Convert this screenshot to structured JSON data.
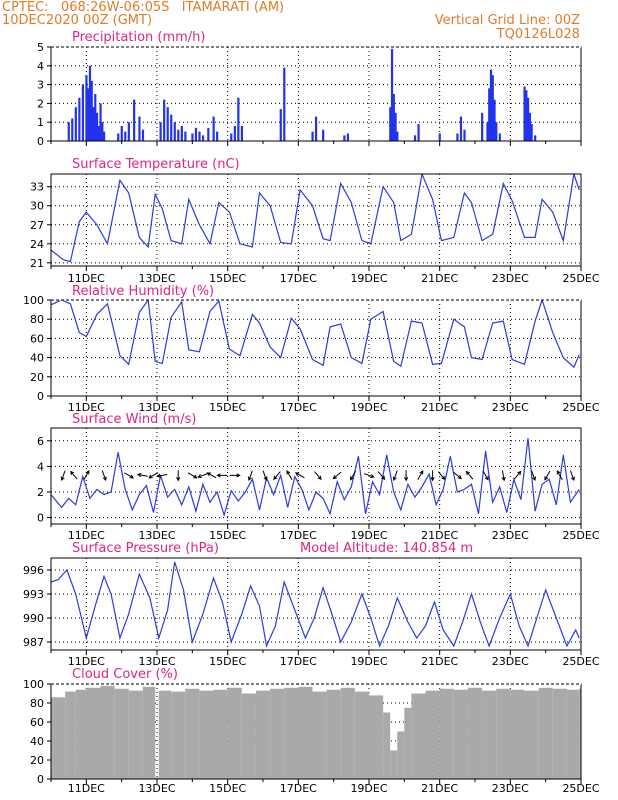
{
  "header": {
    "line1": "CPTEC:   068:26W-06:05S   ITAMARATI (AM)",
    "line2": "10DEC2020 00Z (GMT)",
    "grid_note": "Vertical Grid Line: 00Z",
    "code": "TQ0126L028"
  },
  "x_ticks": [
    "11DEC",
    "13DEC",
    "15DEC",
    "17DEC",
    "19DEC",
    "21DEC",
    "23DEC",
    "25DEC"
  ],
  "colors": {
    "line": "#2b3be0",
    "bar": "#2233ee",
    "cloud": "#a9a9a9",
    "title": "#e0238a",
    "header": "#e07b2a"
  },
  "chart_data": [
    {
      "type": "bar",
      "title": "Precipitation (mm/h)",
      "ylim": [
        0,
        5
      ],
      "yticks": [
        0,
        1,
        2,
        3,
        4,
        5
      ],
      "x": [
        0.5,
        0.6,
        0.7,
        0.8,
        0.9,
        1.0,
        1.05,
        1.1,
        1.15,
        1.2,
        1.25,
        1.3,
        1.35,
        1.4,
        1.45,
        1.5,
        1.9,
        2.0,
        2.1,
        2.2,
        2.35,
        2.5,
        2.6,
        3.1,
        3.2,
        3.3,
        3.4,
        3.5,
        3.6,
        3.7,
        3.8,
        4.0,
        4.1,
        4.2,
        4.3,
        4.45,
        4.6,
        4.7,
        5.1,
        5.2,
        5.3,
        5.4,
        6.5,
        6.6,
        7.4,
        7.5,
        7.7,
        8.3,
        8.4,
        9.6,
        9.65,
        9.7,
        9.75,
        9.8,
        10.3,
        10.4,
        11.0,
        11.5,
        11.6,
        11.7,
        12.2,
        12.35,
        12.4,
        12.45,
        12.5,
        12.55,
        12.6,
        12.7,
        13.4,
        13.45,
        13.5,
        13.55,
        13.6,
        13.7
      ],
      "values": [
        1.0,
        1.2,
        1.8,
        2.3,
        3.0,
        3.5,
        2.8,
        4.0,
        3.2,
        1.8,
        2.5,
        1.5,
        0.8,
        2.0,
        1.0,
        0.5,
        0.4,
        0.8,
        0.5,
        1.0,
        2.2,
        1.3,
        0.6,
        1.0,
        2.2,
        1.8,
        1.4,
        1.0,
        0.6,
        0.8,
        0.5,
        0.4,
        0.7,
        0.5,
        0.3,
        0.7,
        1.3,
        0.5,
        0.4,
        0.8,
        2.3,
        0.8,
        1.7,
        3.9,
        0.5,
        1.3,
        0.6,
        0.3,
        0.4,
        1.8,
        4.9,
        2.5,
        1.5,
        0.5,
        0.3,
        0.9,
        0.4,
        0.4,
        1.3,
        0.6,
        1.5,
        1.0,
        2.8,
        3.8,
        3.5,
        2.2,
        1.0,
        0.4,
        2.9,
        2.7,
        2.3,
        1.5,
        0.9,
        0.3
      ]
    },
    {
      "type": "line",
      "title": "Surface Temperature (nC)",
      "ylim": [
        20.5,
        35
      ],
      "yticks": [
        21,
        24,
        27,
        30,
        33
      ],
      "x": [
        0,
        0.35,
        0.55,
        0.8,
        1.0,
        1.3,
        1.6,
        1.95,
        2.2,
        2.5,
        2.75,
        2.95,
        3.15,
        3.4,
        3.7,
        3.9,
        4.2,
        4.5,
        4.75,
        5.05,
        5.35,
        5.7,
        5.9,
        6.2,
        6.5,
        6.8,
        7.05,
        7.4,
        7.7,
        7.9,
        8.2,
        8.5,
        8.8,
        9.05,
        9.4,
        9.7,
        9.9,
        10.2,
        10.5,
        10.8,
        11.05,
        11.4,
        11.7,
        11.9,
        12.2,
        12.5,
        12.8,
        13.05,
        13.4,
        13.7,
        13.9,
        14.2,
        14.5,
        14.8,
        14.95
      ],
      "values": [
        23.0,
        21.5,
        21.2,
        27.5,
        29.0,
        27.0,
        24.0,
        34.0,
        32.0,
        25.0,
        23.5,
        31.8,
        29.5,
        24.5,
        24.0,
        31.0,
        27.0,
        24.0,
        30.5,
        29.0,
        24.0,
        23.5,
        32.0,
        30.0,
        24.2,
        24.0,
        32.5,
        30.0,
        24.8,
        24.5,
        33.5,
        30.5,
        24.5,
        24.0,
        33.0,
        30.5,
        24.5,
        25.5,
        35.0,
        31.0,
        24.5,
        25.0,
        32.0,
        30.5,
        24.5,
        25.5,
        33.5,
        30.8,
        25.0,
        25.0,
        31.0,
        29.0,
        24.5,
        35.0,
        32.5
      ]
    },
    {
      "type": "line",
      "title": "Relative Humidity (%)",
      "ylim": [
        0,
        100
      ],
      "yticks": [
        0,
        20,
        40,
        60,
        80,
        100
      ],
      "x": [
        0,
        0.3,
        0.55,
        0.8,
        1.0,
        1.3,
        1.6,
        1.95,
        2.2,
        2.5,
        2.75,
        2.95,
        3.15,
        3.4,
        3.7,
        3.9,
        4.2,
        4.5,
        4.75,
        5.05,
        5.35,
        5.7,
        5.9,
        6.2,
        6.5,
        6.8,
        7.05,
        7.4,
        7.7,
        7.9,
        8.2,
        8.5,
        8.8,
        9.05,
        9.4,
        9.7,
        9.9,
        10.2,
        10.5,
        10.8,
        11.05,
        11.4,
        11.7,
        11.9,
        12.2,
        12.5,
        12.8,
        13.05,
        13.4,
        13.7,
        13.9,
        14.2,
        14.5,
        14.8,
        14.95
      ],
      "values": [
        95.0,
        100.0,
        96.0,
        66.0,
        62.0,
        85.0,
        96.0,
        42.0,
        33.0,
        87.0,
        100.0,
        36.0,
        34.0,
        82.0,
        98.0,
        48.0,
        46.0,
        88.0,
        99.0,
        49.0,
        42.0,
        85.0,
        76.0,
        51.0,
        40.0,
        81.0,
        70.0,
        38.0,
        32.0,
        72.0,
        75.0,
        40.0,
        34.0,
        80.0,
        88.0,
        36.0,
        31.0,
        78.0,
        76.0,
        33.0,
        34.0,
        80.0,
        72.0,
        40.0,
        38.0,
        76.0,
        78.0,
        38.0,
        33.0,
        78.0,
        100.0,
        66.0,
        40.0,
        30.0,
        43.0
      ]
    },
    {
      "type": "line",
      "title": "Surface Wind (m/s)",
      "ylim": [
        -0.5,
        7
      ],
      "yticks": [
        0,
        2,
        4,
        6
      ],
      "x": [
        0,
        0.3,
        0.5,
        0.7,
        0.9,
        1.1,
        1.3,
        1.5,
        1.7,
        1.9,
        2.1,
        2.3,
        2.5,
        2.7,
        2.9,
        3.1,
        3.3,
        3.5,
        3.7,
        3.9,
        4.1,
        4.3,
        4.5,
        4.7,
        4.9,
        5.1,
        5.3,
        5.5,
        5.7,
        5.9,
        6.1,
        6.3,
        6.5,
        6.7,
        6.9,
        7.1,
        7.3,
        7.5,
        7.7,
        7.9,
        8.1,
        8.3,
        8.5,
        8.7,
        8.9,
        9.1,
        9.3,
        9.5,
        9.7,
        9.9,
        10.1,
        10.3,
        10.5,
        10.7,
        10.9,
        11.1,
        11.3,
        11.5,
        11.7,
        11.9,
        12.1,
        12.3,
        12.5,
        12.7,
        12.9,
        13.1,
        13.3,
        13.5,
        13.7,
        13.9,
        14.1,
        14.3,
        14.5,
        14.7,
        14.95
      ],
      "values": [
        1.8,
        0.8,
        1.5,
        1.0,
        3.2,
        1.5,
        2.2,
        1.8,
        2.0,
        5.1,
        2.2,
        0.6,
        1.8,
        2.5,
        0.4,
        3.3,
        1.6,
        2.2,
        1.0,
        2.4,
        0.5,
        2.6,
        1.2,
        2.0,
        0.2,
        2.1,
        1.3,
        2.0,
        3.0,
        0.6,
        3.1,
        1.8,
        3.3,
        0.8,
        3.2,
        2.2,
        0.6,
        2.0,
        1.5,
        0.3,
        2.8,
        1.4,
        2.4,
        4.8,
        0.3,
        2.8,
        1.8,
        4.9,
        2.0,
        0.6,
        2.6,
        1.6,
        2.4,
        3.4,
        1.0,
        2.2,
        4.8,
        2.0,
        2.2,
        2.6,
        0.3,
        5.2,
        1.2,
        2.4,
        0.4,
        3.0,
        1.4,
        6.2,
        0.5,
        2.6,
        3.0,
        1.0,
        4.9,
        1.2,
        2.2
      ]
    },
    {
      "type": "line",
      "title": "Surface Pressure (hPa)",
      "annotation": "Model Altitude: 140.854 m",
      "ylim": [
        986,
        997.5
      ],
      "yticks": [
        987,
        990,
        993,
        996
      ],
      "x": [
        0,
        0.2,
        0.45,
        0.7,
        1.0,
        1.25,
        1.5,
        1.7,
        1.95,
        2.2,
        2.5,
        2.8,
        3.05,
        3.3,
        3.5,
        3.75,
        4.0,
        4.3,
        4.6,
        4.85,
        5.1,
        5.4,
        5.65,
        5.9,
        6.1,
        6.35,
        6.6,
        6.9,
        7.2,
        7.45,
        7.7,
        7.95,
        8.2,
        8.5,
        8.8,
        9.05,
        9.3,
        9.55,
        9.8,
        10.1,
        10.35,
        10.6,
        10.85,
        11.1,
        11.4,
        11.65,
        11.9,
        12.15,
        12.4,
        12.7,
        13.0,
        13.25,
        13.5,
        13.75,
        14.0,
        14.3,
        14.6,
        14.85,
        14.95
      ],
      "values": [
        994.5,
        994.8,
        996.0,
        993.0,
        987.5,
        991.5,
        995.2,
        993.0,
        987.5,
        990.5,
        995.5,
        992.5,
        987.5,
        991.0,
        997.0,
        993.5,
        987.0,
        990.5,
        995.0,
        992.0,
        987.0,
        990.5,
        994.0,
        991.5,
        986.5,
        989.0,
        994.5,
        991.0,
        987.5,
        990.0,
        993.8,
        990.5,
        987.0,
        989.5,
        993.0,
        990.0,
        986.5,
        989.0,
        992.5,
        989.5,
        987.5,
        989.0,
        992.0,
        988.5,
        986.5,
        989.5,
        993.0,
        989.5,
        986.5,
        990.0,
        993.0,
        989.0,
        986.5,
        990.0,
        993.5,
        990.0,
        986.5,
        988.5,
        987.5
      ]
    },
    {
      "type": "bar",
      "title": "Cloud Cover (%)",
      "ylim": [
        0,
        100
      ],
      "yticks": [
        0,
        20,
        40,
        60,
        80,
        100
      ],
      "x": [
        0,
        0.4,
        0.7,
        1.0,
        1.4,
        1.8,
        2.2,
        2.6,
        2.95,
        3.05,
        3.4,
        3.8,
        4.2,
        4.6,
        5.0,
        5.4,
        5.8,
        6.2,
        6.6,
        7.0,
        7.4,
        7.8,
        8.2,
        8.6,
        9.0,
        9.4,
        9.6,
        9.8,
        10.0,
        10.2,
        10.6,
        11.0,
        11.4,
        11.8,
        12.2,
        12.6,
        13.0,
        13.4,
        13.8,
        14.2,
        14.6,
        14.95
      ],
      "values": [
        86.0,
        92.0,
        94.0,
        96.0,
        98.0,
        95.0,
        93.0,
        97.0,
        2.0,
        93.0,
        92.0,
        95.0,
        93.0,
        94.0,
        96.0,
        90.0,
        93.0,
        95.0,
        96.0,
        97.0,
        92.0,
        94.0,
        96.0,
        92.0,
        88.0,
        70.0,
        30.0,
        50.0,
        75.0,
        90.0,
        93.0,
        95.0,
        94.0,
        96.0,
        93.0,
        95.0,
        94.0,
        93.0,
        96.0,
        95.0,
        94.0,
        95.0
      ]
    }
  ],
  "wind_arrows": [
    {
      "x": 0.35,
      "dir": 200
    },
    {
      "x": 0.65,
      "dir": 320
    },
    {
      "x": 1.0,
      "dir": 30
    },
    {
      "x": 1.5,
      "dir": 160
    },
    {
      "x": 2.2,
      "dir": 120
    },
    {
      "x": 2.6,
      "dir": 280
    },
    {
      "x": 2.9,
      "dir": 240
    },
    {
      "x": 3.15,
      "dir": 260
    },
    {
      "x": 3.6,
      "dir": 180
    },
    {
      "x": 4.0,
      "dir": 120
    },
    {
      "x": 4.3,
      "dir": 250
    },
    {
      "x": 4.55,
      "dir": 300
    },
    {
      "x": 4.85,
      "dir": 270
    },
    {
      "x": 5.2,
      "dir": 90
    },
    {
      "x": 5.65,
      "dir": 200
    },
    {
      "x": 6.05,
      "dir": 160
    },
    {
      "x": 6.4,
      "dir": 220
    },
    {
      "x": 6.75,
      "dir": 330
    },
    {
      "x": 7.05,
      "dir": 300
    },
    {
      "x": 7.55,
      "dir": 140
    },
    {
      "x": 8.1,
      "dir": 230
    },
    {
      "x": 8.55,
      "dir": 210
    },
    {
      "x": 9.0,
      "dir": 110
    },
    {
      "x": 9.35,
      "dir": 140
    },
    {
      "x": 9.75,
      "dir": 200
    },
    {
      "x": 10.05,
      "dir": 180
    },
    {
      "x": 10.45,
      "dir": 30
    },
    {
      "x": 10.8,
      "dir": 180
    },
    {
      "x": 11.05,
      "dir": 140
    },
    {
      "x": 11.5,
      "dir": 130
    },
    {
      "x": 11.85,
      "dir": 320
    },
    {
      "x": 12.3,
      "dir": 150
    },
    {
      "x": 12.8,
      "dir": 170
    },
    {
      "x": 13.2,
      "dir": 40
    },
    {
      "x": 13.65,
      "dir": 160
    },
    {
      "x": 14.05,
      "dir": 210
    },
    {
      "x": 14.4,
      "dir": 330
    },
    {
      "x": 14.75,
      "dir": 160
    }
  ]
}
